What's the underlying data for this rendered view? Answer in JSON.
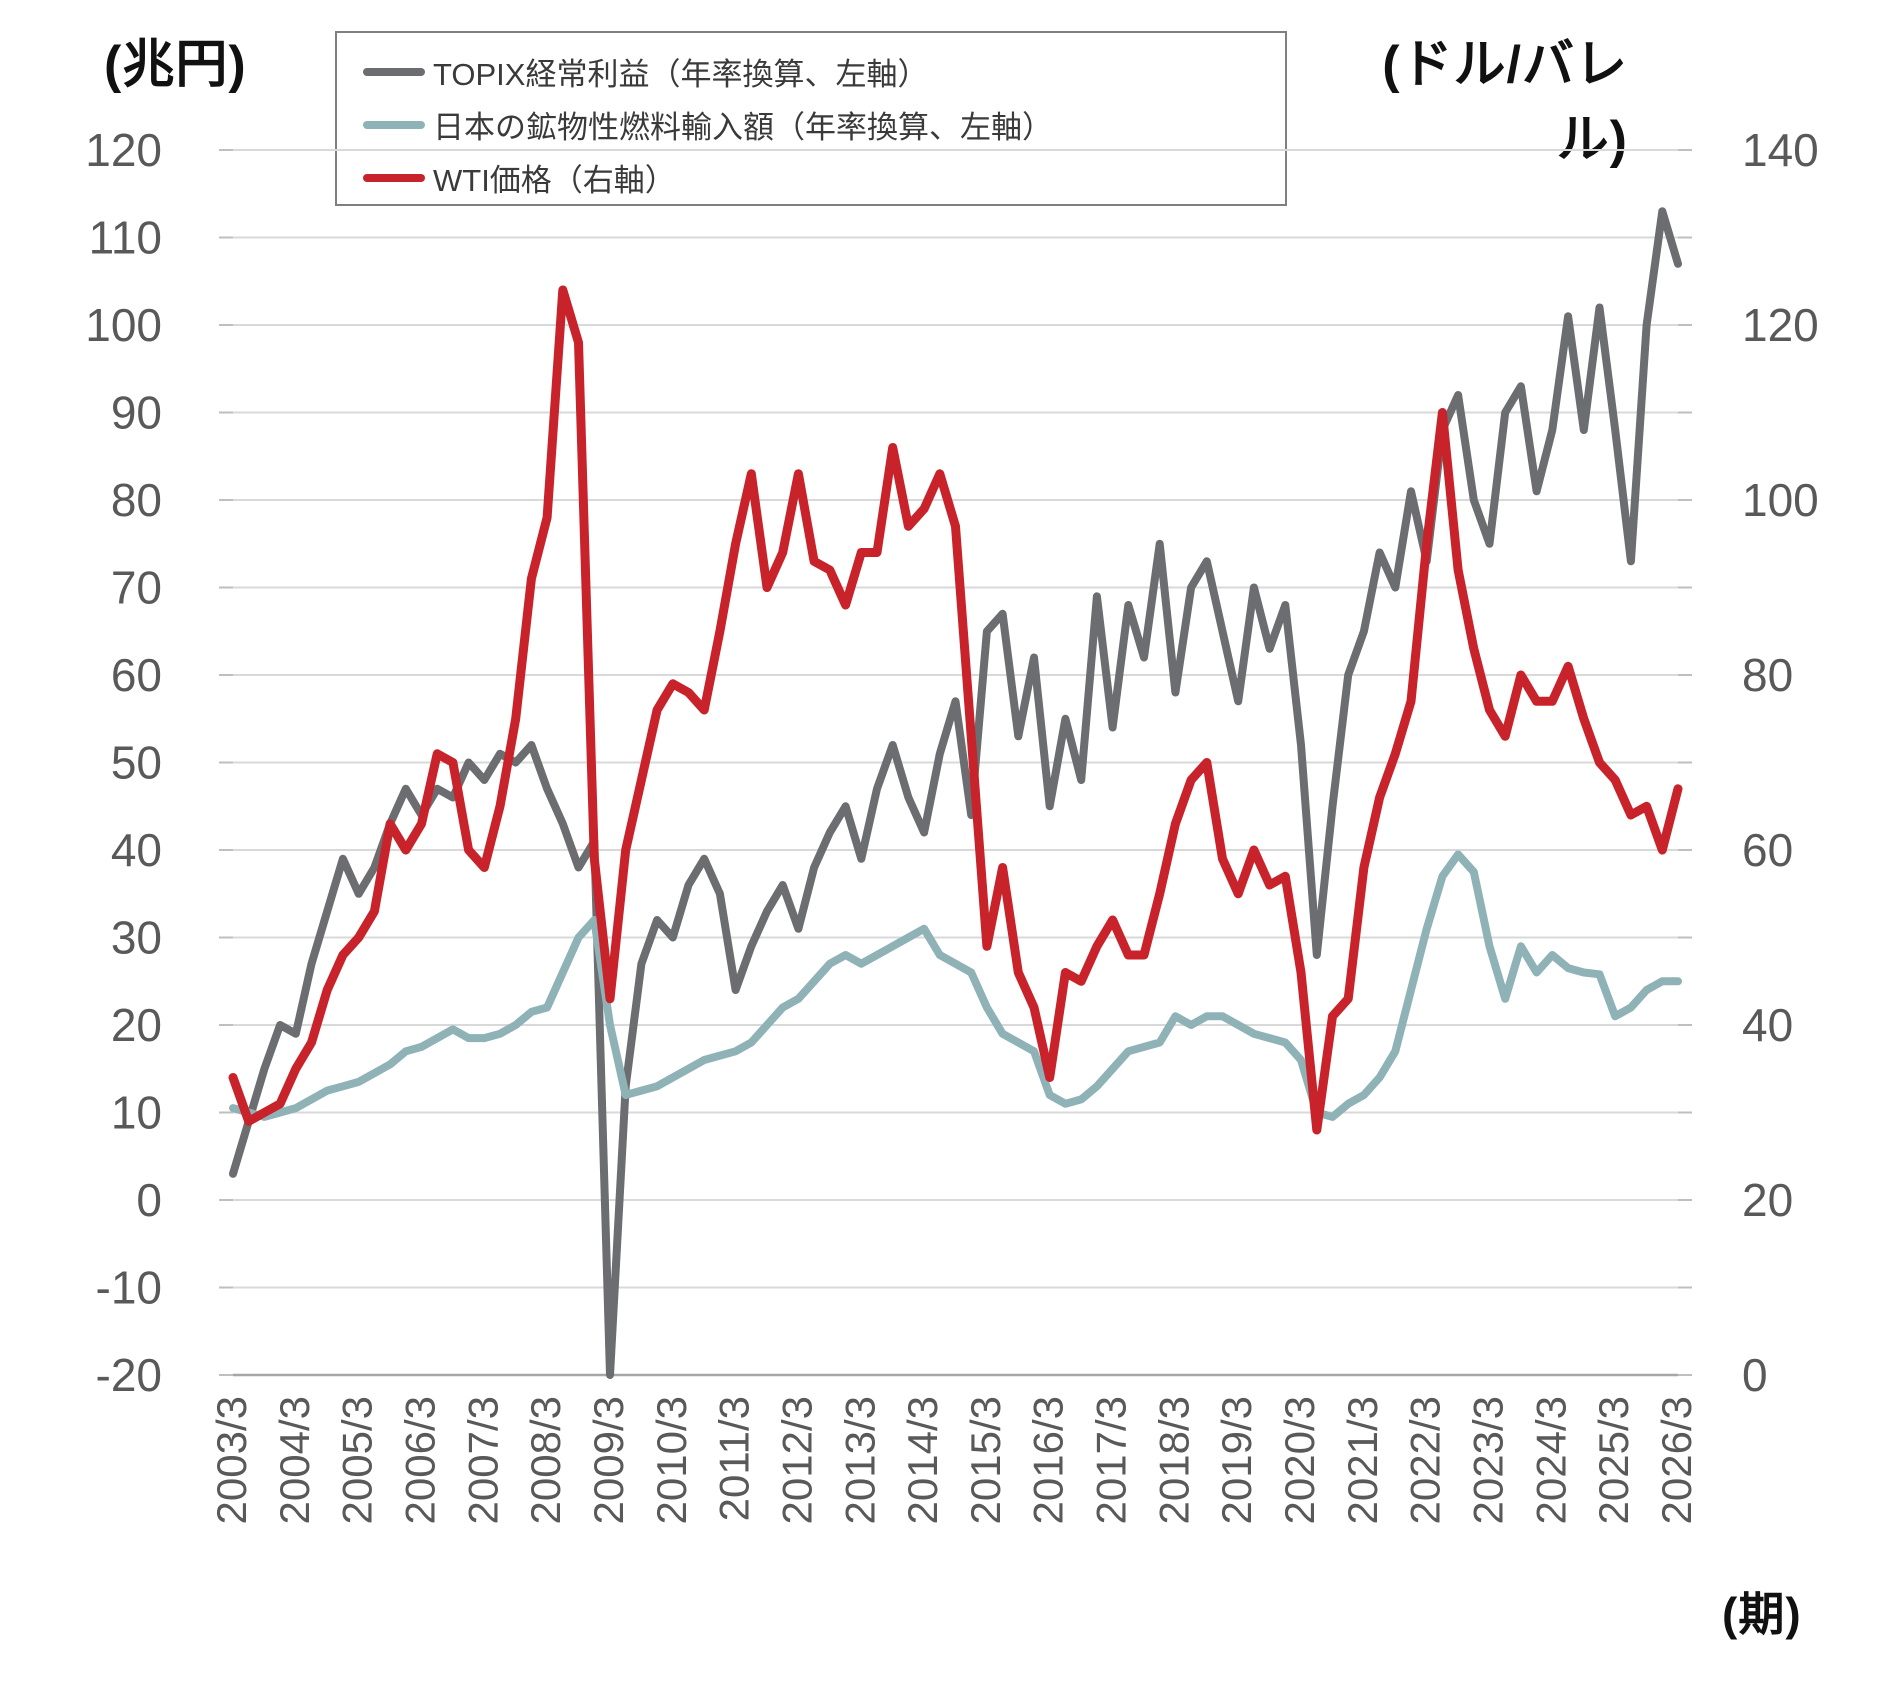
{
  "header": {
    "left_axis_unit": "(兆円)",
    "right_axis_unit": "(ドル/バレル)",
    "x_axis_unit": "(期)"
  },
  "legend": {
    "items": [
      {
        "label": "TOPIX経常利益（年率換算、左軸）",
        "color": "#6c6d70"
      },
      {
        "label": "日本の鉱物性燃料輸入額（年率換算、左軸）",
        "color": "#8fb2b7"
      },
      {
        "label": "WTI価格（右軸）",
        "color": "#c8232b"
      }
    ]
  },
  "chart_data": {
    "type": "line",
    "title": "",
    "xlabel": "(期)",
    "grid": true,
    "legend_position": "top",
    "left_axis": {
      "label": "(兆円)",
      "min": -20,
      "max": 120,
      "tick_step": 10,
      "tick_labels": [
        120,
        110,
        100,
        90,
        80,
        70,
        60,
        50,
        40,
        30,
        20,
        10,
        0,
        -10,
        -20
      ]
    },
    "right_axis": {
      "label": "(ドル/バレル)",
      "min": 0,
      "max": 140,
      "tick_step": 20,
      "tick_labels": [
        140,
        120,
        100,
        80,
        60,
        40,
        20,
        0
      ]
    },
    "x_tick_interval": 4,
    "x": [
      "2003/3",
      "2003/6",
      "2003/9",
      "2003/12",
      "2004/3",
      "2004/6",
      "2004/9",
      "2004/12",
      "2005/3",
      "2005/6",
      "2005/9",
      "2005/12",
      "2006/3",
      "2006/6",
      "2006/9",
      "2006/12",
      "2007/3",
      "2007/6",
      "2007/9",
      "2007/12",
      "2008/3",
      "2008/6",
      "2008/9",
      "2008/12",
      "2009/3",
      "2009/6",
      "2009/9",
      "2009/12",
      "2010/3",
      "2010/6",
      "2010/9",
      "2010/12",
      "2011/3",
      "2011/6",
      "2011/9",
      "2011/12",
      "2012/3",
      "2012/6",
      "2012/9",
      "2012/12",
      "2013/3",
      "2013/6",
      "2013/9",
      "2013/12",
      "2014/3",
      "2014/6",
      "2014/9",
      "2014/12",
      "2015/3",
      "2015/6",
      "2015/9",
      "2015/12",
      "2016/3",
      "2016/6",
      "2016/9",
      "2016/12",
      "2017/3",
      "2017/6",
      "2017/9",
      "2017/12",
      "2018/3",
      "2018/6",
      "2018/9",
      "2018/12",
      "2019/3",
      "2019/6",
      "2019/9",
      "2019/12",
      "2020/3",
      "2020/6",
      "2020/9",
      "2020/12",
      "2021/3",
      "2021/6",
      "2021/9",
      "2021/12",
      "2022/3",
      "2022/6",
      "2022/9",
      "2022/12",
      "2023/3",
      "2023/6",
      "2023/9",
      "2023/12",
      "2024/3",
      "2024/6",
      "2024/9",
      "2024/12",
      "2025/3",
      "2025/6",
      "2025/9",
      "2025/12",
      "2026/3"
    ],
    "series": [
      {
        "name": "TOPIX経常利益（年率換算、左軸）",
        "axis": "left",
        "color": "#6c6d70",
        "stroke_width": 8,
        "values": [
          3,
          9,
          15,
          20,
          19,
          27,
          33,
          39,
          35,
          38,
          43,
          47,
          44,
          47,
          46,
          50,
          48,
          51,
          50,
          52,
          47,
          43,
          38,
          41,
          -20,
          13,
          27,
          32,
          30,
          36,
          39,
          35,
          24,
          29,
          33,
          36,
          31,
          38,
          42,
          45,
          39,
          47,
          52,
          46,
          42,
          51,
          57,
          44,
          65,
          67,
          53,
          62,
          45,
          55,
          48,
          69,
          54,
          68,
          62,
          75,
          58,
          70,
          73,
          65,
          57,
          70,
          63,
          68,
          52,
          28,
          45,
          60,
          65,
          74,
          70,
          81,
          73,
          88,
          92,
          80,
          75,
          90,
          93,
          81,
          88,
          101,
          88,
          102,
          88,
          73,
          100,
          113,
          107
        ]
      },
      {
        "name": "日本の鉱物性燃料輸入額（年率換算、左軸）",
        "axis": "left",
        "color": "#8fb2b7",
        "stroke_width": 8,
        "values": [
          10.5,
          10,
          9.5,
          10,
          10.5,
          11.5,
          12.5,
          13,
          13.5,
          14.5,
          15.5,
          17,
          17.5,
          18.5,
          19.5,
          18.5,
          18.5,
          19,
          20,
          21.5,
          22,
          26,
          30,
          32,
          20,
          12,
          12.5,
          13,
          14,
          15,
          16,
          16.5,
          17,
          18,
          20,
          22,
          23,
          25,
          27,
          28,
          27,
          28,
          29,
          30,
          31,
          28,
          27,
          26,
          22,
          19,
          18,
          17,
          12,
          11,
          11.5,
          13,
          15,
          17,
          17.5,
          18,
          21,
          20,
          21,
          21,
          20,
          19,
          18.5,
          18,
          16,
          10,
          9.5,
          11,
          12,
          14,
          17,
          24,
          31,
          37,
          39.5,
          37.5,
          29,
          23,
          29,
          26,
          28,
          26.5,
          26,
          25.8,
          21,
          22,
          24,
          25,
          25
        ]
      },
      {
        "name": "WTI価格（右軸）",
        "axis": "right",
        "color": "#c8232b",
        "stroke_width": 9,
        "values": [
          34,
          29,
          30,
          31,
          35,
          38,
          44,
          48,
          50,
          53,
          63,
          60,
          63,
          71,
          70,
          60,
          58,
          65,
          75,
          91,
          98,
          124,
          118,
          59,
          43,
          60,
          68,
          76,
          79,
          78,
          76,
          85,
          95,
          103,
          90,
          94,
          103,
          93,
          92,
          88,
          94,
          94,
          106,
          97,
          99,
          103,
          97,
          73,
          49,
          58,
          46,
          42,
          34,
          46,
          45,
          49,
          52,
          48,
          48,
          55,
          63,
          68,
          70,
          59,
          55,
          60,
          56,
          57,
          46,
          28,
          41,
          43,
          58,
          66,
          71,
          77,
          95,
          110,
          92,
          83,
          76,
          73,
          80,
          77,
          77,
          81,
          75,
          70,
          68,
          64,
          65,
          60,
          67
        ]
      }
    ]
  }
}
